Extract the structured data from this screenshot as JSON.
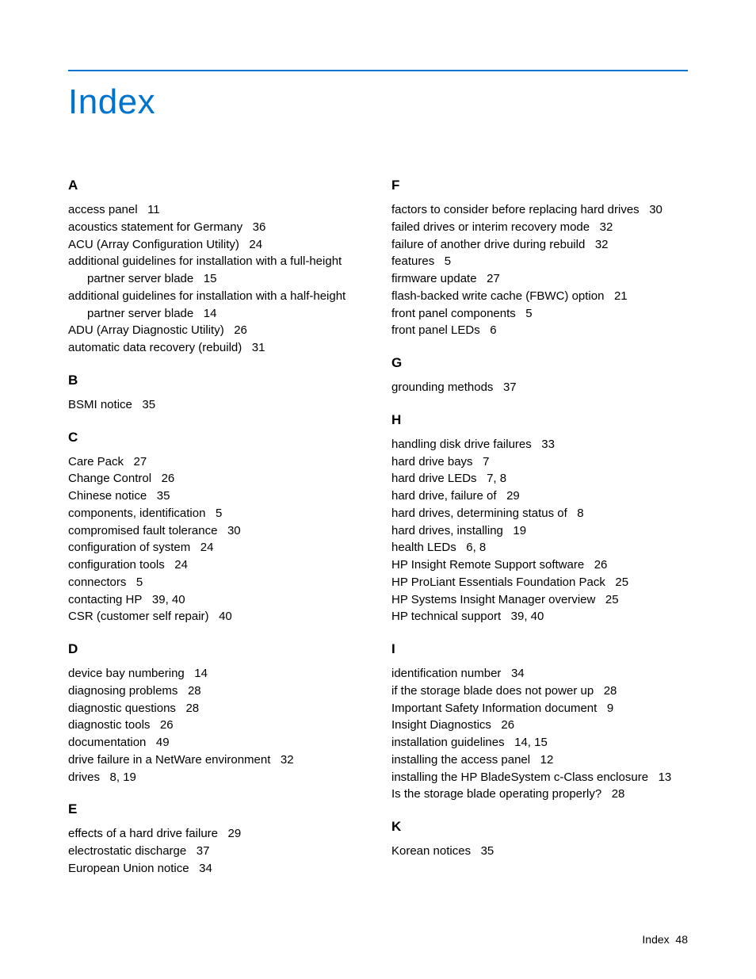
{
  "colors": {
    "accent": "#0073cf",
    "text": "#000000",
    "background": "#ffffff"
  },
  "title": "Index",
  "footer": {
    "label": "Index",
    "page": "48"
  },
  "leftSections": [
    {
      "letter": "A",
      "entries": [
        {
          "term": "access panel",
          "pages": "11"
        },
        {
          "term": "acoustics statement for Germany",
          "pages": "36"
        },
        {
          "term": "ACU (Array Configuration Utility)",
          "pages": "24"
        },
        {
          "term": "additional guidelines for installation with a full-height partner server blade",
          "pages": "15"
        },
        {
          "term": "additional guidelines for installation with a half-height partner server blade",
          "pages": "14"
        },
        {
          "term": "ADU (Array Diagnostic Utility)",
          "pages": "26"
        },
        {
          "term": "automatic data recovery (rebuild)",
          "pages": "31"
        }
      ]
    },
    {
      "letter": "B",
      "entries": [
        {
          "term": "BSMI notice",
          "pages": "35"
        }
      ]
    },
    {
      "letter": "C",
      "entries": [
        {
          "term": "Care Pack",
          "pages": "27"
        },
        {
          "term": "Change Control",
          "pages": "26"
        },
        {
          "term": "Chinese notice",
          "pages": "35"
        },
        {
          "term": "components, identification",
          "pages": "5"
        },
        {
          "term": "compromised fault tolerance",
          "pages": "30"
        },
        {
          "term": "configuration of system",
          "pages": "24"
        },
        {
          "term": "configuration tools",
          "pages": "24"
        },
        {
          "term": "connectors",
          "pages": "5"
        },
        {
          "term": "contacting HP",
          "pages": "39, 40"
        },
        {
          "term": "CSR (customer self repair)",
          "pages": "40"
        }
      ]
    },
    {
      "letter": "D",
      "entries": [
        {
          "term": "device bay numbering",
          "pages": "14"
        },
        {
          "term": "diagnosing problems",
          "pages": "28"
        },
        {
          "term": "diagnostic questions",
          "pages": "28"
        },
        {
          "term": "diagnostic tools",
          "pages": "26"
        },
        {
          "term": "documentation",
          "pages": "49"
        },
        {
          "term": "drive failure in a NetWare environment",
          "pages": "32"
        },
        {
          "term": "drives",
          "pages": "8, 19"
        }
      ]
    },
    {
      "letter": "E",
      "entries": [
        {
          "term": "effects of a hard drive failure",
          "pages": "29"
        },
        {
          "term": "electrostatic discharge",
          "pages": "37"
        },
        {
          "term": "European Union notice",
          "pages": "34"
        }
      ]
    }
  ],
  "rightSections": [
    {
      "letter": "F",
      "entries": [
        {
          "term": "factors to consider before replacing hard drives",
          "pages": "30"
        },
        {
          "term": "failed drives or interim recovery mode",
          "pages": "32"
        },
        {
          "term": "failure of another drive during rebuild",
          "pages": "32"
        },
        {
          "term": "features",
          "pages": "5"
        },
        {
          "term": "firmware update",
          "pages": "27"
        },
        {
          "term": "flash-backed write cache (FBWC) option",
          "pages": "21"
        },
        {
          "term": "front panel components",
          "pages": "5"
        },
        {
          "term": "front panel LEDs",
          "pages": "6"
        }
      ]
    },
    {
      "letter": "G",
      "entries": [
        {
          "term": "grounding methods",
          "pages": "37"
        }
      ]
    },
    {
      "letter": "H",
      "entries": [
        {
          "term": "handling disk drive failures",
          "pages": "33"
        },
        {
          "term": "hard drive bays",
          "pages": "7"
        },
        {
          "term": "hard drive LEDs",
          "pages": "7, 8"
        },
        {
          "term": "hard drive, failure of",
          "pages": "29"
        },
        {
          "term": "hard drives, determining status of",
          "pages": "8"
        },
        {
          "term": "hard drives, installing",
          "pages": "19"
        },
        {
          "term": "health LEDs",
          "pages": "6, 8"
        },
        {
          "term": "HP Insight Remote Support software",
          "pages": "26"
        },
        {
          "term": "HP ProLiant Essentials Foundation Pack",
          "pages": "25"
        },
        {
          "term": "HP Systems Insight Manager overview",
          "pages": "25"
        },
        {
          "term": "HP technical support",
          "pages": "39, 40"
        }
      ]
    },
    {
      "letter": "I",
      "entries": [
        {
          "term": "identification number",
          "pages": "34"
        },
        {
          "term": "if the storage blade does not power up",
          "pages": "28"
        },
        {
          "term": "Important Safety Information document",
          "pages": "9"
        },
        {
          "term": "Insight Diagnostics",
          "pages": "26"
        },
        {
          "term": "installation guidelines",
          "pages": "14, 15"
        },
        {
          "term": "installing the access panel",
          "pages": "12"
        },
        {
          "term": "installing the HP BladeSystem c-Class enclosure",
          "pages": "13"
        },
        {
          "term": "Is the storage blade operating properly?",
          "pages": "28"
        }
      ]
    },
    {
      "letter": "K",
      "entries": [
        {
          "term": "Korean notices",
          "pages": "35"
        }
      ]
    }
  ]
}
